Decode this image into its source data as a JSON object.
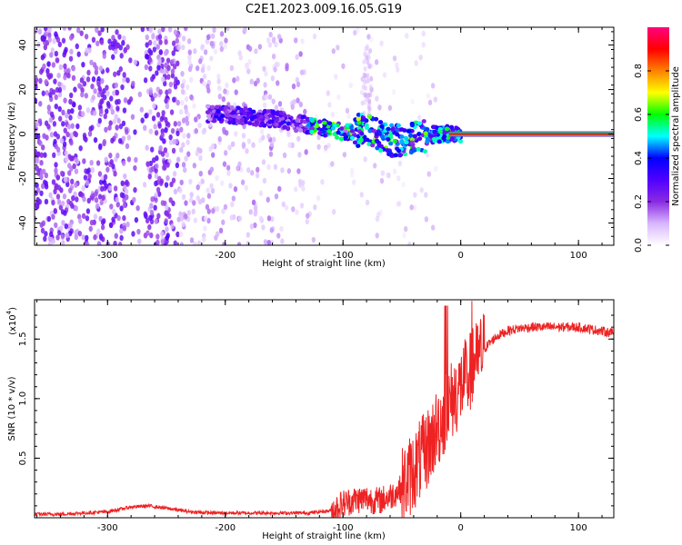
{
  "title": "C2E1.2023.009.16.05.G19",
  "chart_data": [
    {
      "type": "heatmap",
      "xlabel": "Height of straight line (km)",
      "ylabel": "Frequency (Hz)",
      "xlim": [
        -362,
        130
      ],
      "ylim": [
        -50,
        48
      ],
      "xticks": [
        -300,
        -200,
        -100,
        0,
        100
      ],
      "yticks": [
        -40,
        -20,
        0,
        20,
        40
      ],
      "colorbar": {
        "label": "Normalized spectral amplitude",
        "range": [
          0,
          1
        ],
        "ticks": [
          0.0,
          0.2,
          0.4,
          0.6,
          0.8
        ],
        "tick_labels": [
          "0.0",
          "0.2",
          "0.4",
          "0.6",
          "0.8"
        ],
        "colormap": [
          "#ffffff",
          "#d8b6ff",
          "#8a2be2",
          "#5000ff",
          "#0000ff",
          "#00ffff",
          "#00ff00",
          "#ffff00",
          "#ff8000",
          "#ff0000",
          "#ff0080"
        ]
      },
      "trend": [
        {
          "x": -210,
          "y": 9
        },
        {
          "x": -180,
          "y": 8
        },
        {
          "x": -150,
          "y": 6
        },
        {
          "x": -120,
          "y": 3
        },
        {
          "x": -100,
          "y": 1
        },
        {
          "x": -80,
          "y": 2
        },
        {
          "x": -60,
          "y": -3
        },
        {
          "x": -40,
          "y": -2
        },
        {
          "x": -20,
          "y": 0
        },
        {
          "x": 0,
          "y": 0
        },
        {
          "x": 130,
          "y": 0
        }
      ]
    },
    {
      "type": "line",
      "xlabel": "Height of straight line (km)",
      "ylabel": "SNR (10 * v/v)",
      "scale_label": "(x10",
      "scale_exponent": "4",
      "scale_close": ")",
      "xlim": [
        -362,
        130
      ],
      "ylim": [
        0,
        1.83
      ],
      "xticks": [
        -300,
        -200,
        -100,
        0,
        100
      ],
      "yticks": [
        0.5,
        1.0,
        1.5
      ],
      "ytick_labels": [
        "0.5",
        "1.0",
        "1.5"
      ],
      "line_color": "#ee2222",
      "series": [
        {
          "values_note_free": true,
          "x": [
            -362,
            -340,
            -320,
            -300,
            -280,
            -265,
            -250,
            -230,
            -210,
            -190,
            -170,
            -150,
            -130,
            -110,
            -100,
            -90,
            -80,
            -70,
            -60,
            -50,
            -40,
            -30,
            -20,
            -10,
            0,
            10,
            20,
            30,
            40,
            50,
            60,
            80,
            100,
            130
          ],
          "y": [
            0.03,
            0.03,
            0.04,
            0.05,
            0.09,
            0.1,
            0.08,
            0.05,
            0.04,
            0.04,
            0.04,
            0.04,
            0.04,
            0.06,
            0.12,
            0.15,
            0.16,
            0.14,
            0.18,
            0.25,
            0.4,
            0.55,
            0.75,
            0.95,
            1.1,
            1.25,
            1.42,
            1.52,
            1.57,
            1.59,
            1.6,
            1.6,
            1.6,
            1.55
          ]
        }
      ]
    }
  ]
}
